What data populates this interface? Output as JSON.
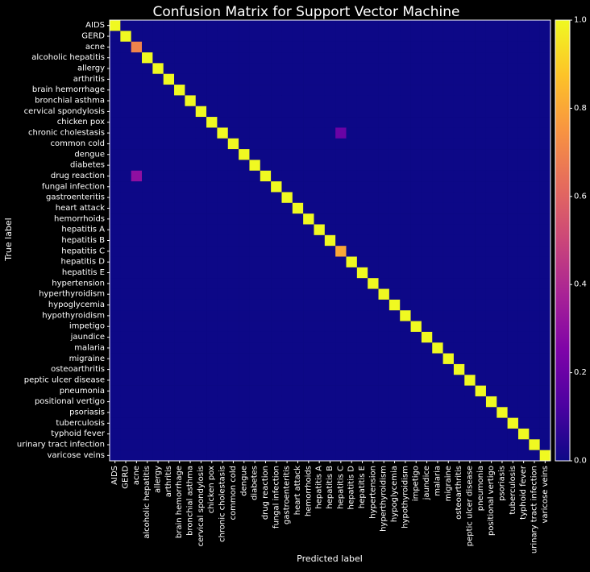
{
  "chart_data": {
    "type": "heatmap",
    "title": "Confusion Matrix for Support Vector Machine",
    "xlabel": "Predicted label",
    "ylabel": "True label",
    "labels": [
      "AIDS",
      "GERD",
      "acne",
      "alcoholic hepatitis",
      "allergy",
      "arthritis",
      "brain hemorrhage",
      "bronchial asthma",
      "cervical spondylosis",
      "chicken pox",
      "chronic cholestasis",
      "common cold",
      "dengue",
      "diabetes",
      "drug reaction",
      "fungal infection",
      "gastroenteritis",
      "heart attack",
      "hemorrhoids",
      "hepatitis A",
      "hepatitis B",
      "hepatitis C",
      "hepatitis D",
      "hepatitis E",
      "hypertension",
      "hyperthyroidism",
      "hypoglycemia",
      "hypothyroidism",
      "impetigo",
      "jaundice",
      "malaria",
      "migraine",
      "osteoarthritis",
      "peptic ulcer disease",
      "pneumonia",
      "positional vertigo",
      "psoriasis",
      "tuberculosis",
      "typhoid fever",
      "urinary tract infection",
      "varicose veins"
    ],
    "diagonal_default": 1.0,
    "cell_overrides": [
      {
        "row": 2,
        "col": 2,
        "value": 0.7
      },
      {
        "row": 10,
        "col": 21,
        "value": 0.2
      },
      {
        "row": 14,
        "col": 2,
        "value": 0.3
      },
      {
        "row": 21,
        "col": 21,
        "value": 0.8
      }
    ],
    "colorbar": {
      "range": [
        0,
        1
      ],
      "ticks": [
        "0.0",
        "0.2",
        "0.4",
        "0.6",
        "0.8",
        "1.0"
      ],
      "colormap": "plasma"
    },
    "background_color": "#000000"
  }
}
